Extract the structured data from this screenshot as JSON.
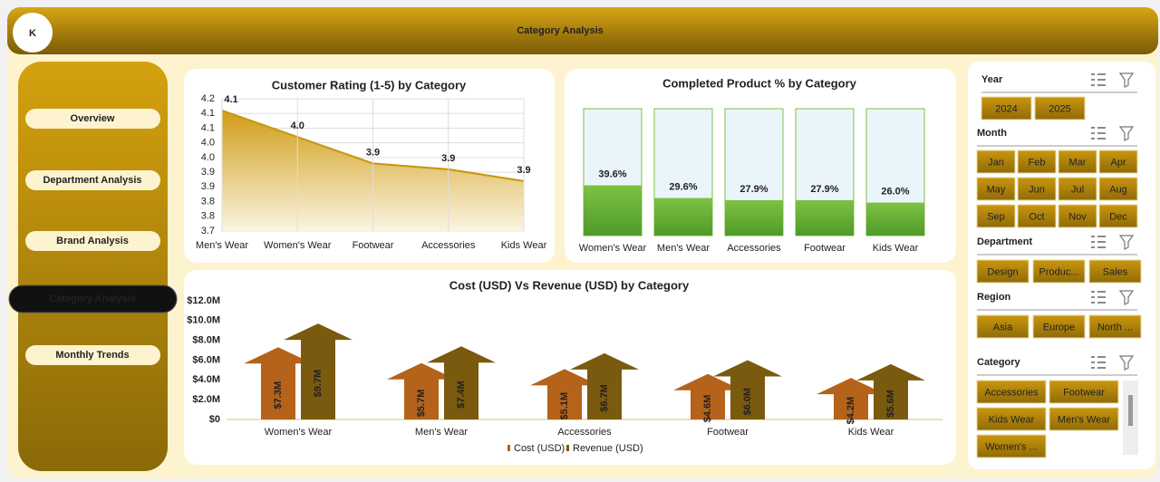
{
  "header": {
    "title": "Category Analysis"
  },
  "nav": {
    "items": [
      "Overview",
      "Department Analysis",
      "Brand Analysis",
      "Category Analysis",
      "Monthly Trends"
    ],
    "active": 3
  },
  "chart_data": [
    {
      "type": "area",
      "title": "Customer Rating (1-5) by Category",
      "categories": [
        "Men's Wear",
        "Women's Wear",
        "Footwear",
        "Accessories",
        "Kids Wear"
      ],
      "values": [
        4.11,
        4.02,
        3.93,
        3.91,
        3.87
      ],
      "value_labels": [
        "4.1",
        "4.0",
        "3.9",
        "3.9",
        "3.9"
      ],
      "color": "#c8960a",
      "ylim": [
        3.7,
        4.15
      ],
      "yticks": [
        3.7,
        {
          "value": 3.75,
          "label": "3.8"
        },
        3.8,
        {
          "value": 3.85,
          "label": "3.9"
        },
        3.9,
        {
          "value": 3.95,
          "label": "4.0"
        },
        {
          "value": 4,
          "label": "4.0"
        },
        {
          "value": 4.05,
          "label": "4.1"
        },
        4.1,
        {
          "value": 4.15,
          "label": "4.2"
        }
      ],
      "grid": true
    },
    {
      "type": "bar",
      "title": "Completed Product % by Category",
      "categories": [
        "Women's Wear",
        "Men's Wear",
        "Accessories",
        "Footwear",
        "Kids Wear"
      ],
      "values": [
        39.6,
        29.6,
        27.9,
        27.9,
        26.0
      ],
      "value_labels": [
        "39.6%",
        "29.6%",
        "27.9%",
        "27.9%",
        "26.0%"
      ],
      "color": "#7cc242",
      "ylim": [
        0,
        100
      ]
    },
    {
      "type": "bar",
      "title": "Cost (USD) Vs Revenue (USD) by Category",
      "categories": [
        "Women's Wear",
        "Men's Wear",
        "Accessories",
        "Footwear",
        "Kids Wear"
      ],
      "series": [
        {
          "name": "Cost (USD)",
          "color": "#b5621a",
          "values": [
            7300000,
            5700000,
            5100000,
            4600000,
            4200000
          ],
          "value_labels": [
            "$7.3M",
            "$5.7M",
            "$5.1M",
            "$4.6M",
            "$4.2M"
          ]
        },
        {
          "name": "Revenue (USD)",
          "color": "#7a5a0f",
          "values": [
            9700000,
            7400000,
            6700000,
            6000000,
            5600000
          ],
          "value_labels": [
            "$9.7M",
            "$7.4M",
            "$6.7M",
            "$6.0M",
            "$5.6M"
          ]
        }
      ],
      "ylim": [
        0,
        12000000
      ],
      "yticks": [
        {
          "value": 0,
          "label": "$0"
        },
        {
          "value": 2000000,
          "label": "$2.0M"
        },
        {
          "value": 4000000,
          "label": "$4.0M"
        },
        {
          "value": 6000000,
          "label": "$6.0M"
        },
        {
          "value": 8000000,
          "label": "$8.0M"
        },
        {
          "value": 10000000,
          "label": "$10.0M"
        },
        {
          "value": 12000000,
          "label": "$12.0M"
        }
      ],
      "legend": "bottom"
    }
  ],
  "slicers": [
    {
      "title": "Year",
      "items": [
        "2024",
        "2025"
      ]
    },
    {
      "title": "Month",
      "items": [
        "Jan",
        "Feb",
        "Mar",
        "Apr",
        "May",
        "Jun",
        "Jul",
        "Aug",
        "Sep",
        "Oct",
        "Nov",
        "Dec"
      ]
    },
    {
      "title": "Department",
      "items": [
        "Design",
        "Produc...",
        "Sales"
      ]
    },
    {
      "title": "Region",
      "items": [
        "Asia",
        "Europe",
        "North ..."
      ]
    },
    {
      "title": "Category",
      "items": [
        "Accessories",
        "Footwear",
        "Kids Wear",
        "Men's Wear",
        "Women's ..."
      ]
    }
  ]
}
